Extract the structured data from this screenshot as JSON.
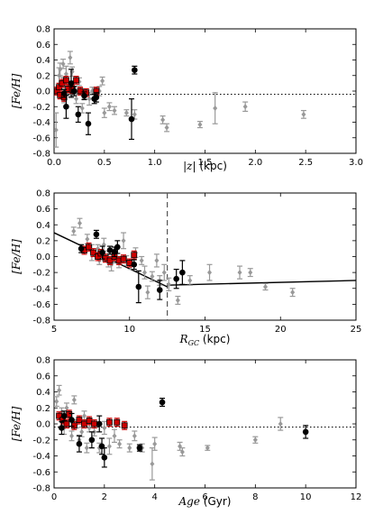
{
  "chart_data": [
    {
      "type": "scatter",
      "x_ticks": [
        0.0,
        0.5,
        1.0,
        1.5,
        2.0,
        2.5,
        3.0
      ],
      "y_ticks": [
        -0.8,
        -0.6,
        -0.4,
        -0.2,
        0.0,
        0.2,
        0.4,
        0.6,
        0.8
      ],
      "xlim": [
        0.0,
        3.0
      ],
      "ylim": [
        -0.8,
        0.8
      ],
      "ylabel": "[Fe/H]",
      "xlabel_sym": "|z|",
      "xlabel_unit": "(kpc)",
      "grid": false,
      "reference_line": {
        "style": "dotted",
        "y": -0.04
      },
      "series": [
        {
          "marker": "gray-diamond",
          "color": "#999999",
          "points": [
            [
              0.02,
              -0.5,
              0.22
            ],
            [
              0.05,
              0.2,
              0.1
            ],
            [
              0.06,
              0.28,
              0.08
            ],
            [
              0.08,
              0.1,
              0.08
            ],
            [
              0.09,
              0.35,
              0.06
            ],
            [
              0.1,
              -0.05,
              0.1
            ],
            [
              0.12,
              0.22,
              0.1
            ],
            [
              0.14,
              0.0,
              0.06
            ],
            [
              0.16,
              0.43,
              0.08
            ],
            [
              0.18,
              0.25,
              0.06
            ],
            [
              0.2,
              0.05,
              0.08
            ],
            [
              0.22,
              -0.1,
              0.06
            ],
            [
              0.25,
              0.12,
              0.05
            ],
            [
              0.28,
              -0.22,
              0.06
            ],
            [
              0.3,
              -0.04,
              0.06
            ],
            [
              0.35,
              -0.1,
              0.08
            ],
            [
              0.38,
              0.0,
              0.05
            ],
            [
              0.4,
              -0.05,
              0.06
            ],
            [
              0.45,
              0.0,
              0.06
            ],
            [
              0.48,
              0.13,
              0.05
            ],
            [
              0.5,
              -0.28,
              0.06
            ],
            [
              0.55,
              -0.2,
              0.05
            ],
            [
              0.6,
              -0.25,
              0.05
            ],
            [
              0.72,
              -0.28,
              0.04
            ],
            [
              0.8,
              -0.3,
              0.06
            ],
            [
              1.08,
              -0.37,
              0.05
            ],
            [
              1.12,
              -0.47,
              0.05
            ],
            [
              1.45,
              -0.43,
              0.04
            ],
            [
              1.6,
              -0.22,
              0.2
            ],
            [
              1.9,
              -0.2,
              0.06
            ],
            [
              2.48,
              -0.3,
              0.05
            ]
          ]
        },
        {
          "marker": "red-square",
          "color": "#cc0000",
          "points": [
            [
              0.03,
              0.0,
              0.05
            ],
            [
              0.05,
              0.05,
              0.05
            ],
            [
              0.06,
              -0.05,
              0.05
            ],
            [
              0.08,
              0.1,
              0.05
            ],
            [
              0.1,
              -0.08,
              0.05
            ],
            [
              0.12,
              0.14,
              0.05
            ],
            [
              0.14,
              0.03,
              0.05
            ],
            [
              0.18,
              0.02,
              0.05
            ],
            [
              0.22,
              0.14,
              0.05
            ],
            [
              0.26,
              0.0,
              0.05
            ],
            [
              0.32,
              -0.02,
              0.05
            ],
            [
              0.42,
              0.0,
              0.05
            ]
          ]
        },
        {
          "marker": "black-circle",
          "color": "#000000",
          "points": [
            [
              0.1,
              -0.03,
              0.05
            ],
            [
              0.12,
              -0.2,
              0.15
            ],
            [
              0.17,
              0.1,
              0.18
            ],
            [
              0.2,
              0.0,
              0.06
            ],
            [
              0.24,
              -0.3,
              0.1
            ],
            [
              0.3,
              -0.06,
              0.05
            ],
            [
              0.34,
              -0.42,
              0.14
            ],
            [
              0.4,
              -0.1,
              0.06
            ],
            [
              0.42,
              -0.08,
              0.06
            ],
            [
              0.77,
              -0.36,
              0.26
            ],
            [
              0.8,
              0.27,
              0.05
            ]
          ]
        }
      ]
    },
    {
      "type": "scatter",
      "x_ticks": [
        5,
        10,
        15,
        20,
        25
      ],
      "y_ticks": [
        -0.8,
        -0.6,
        -0.4,
        -0.2,
        0.0,
        0.2,
        0.4,
        0.6,
        0.8
      ],
      "xlim": [
        5,
        25
      ],
      "ylim": [
        -0.8,
        0.8
      ],
      "ylabel": "[Fe/H]",
      "xlabel_sym": "R_GC",
      "xlabel_unit": "(kpc)",
      "grid": false,
      "vertical_dashed": {
        "x": 12.5
      },
      "fit_lines": [
        [
          [
            5.0,
            0.3
          ],
          [
            12.5,
            -0.38
          ]
        ],
        [
          [
            12.5,
            -0.36
          ],
          [
            25.0,
            -0.3
          ]
        ]
      ],
      "series": [
        {
          "marker": "gray-diamond",
          "color": "#999999",
          "points": [
            [
              6.3,
              0.32,
              0.05
            ],
            [
              6.7,
              0.42,
              0.06
            ],
            [
              7.2,
              0.22,
              0.06
            ],
            [
              7.5,
              0.05,
              0.1
            ],
            [
              7.9,
              0.1,
              0.05
            ],
            [
              8.0,
              -0.05,
              0.05
            ],
            [
              8.3,
              0.15,
              0.08
            ],
            [
              8.6,
              -0.05,
              0.08
            ],
            [
              8.8,
              -0.1,
              0.08
            ],
            [
              9.0,
              -0.02,
              0.06
            ],
            [
              9.3,
              -0.08,
              0.06
            ],
            [
              9.6,
              0.2,
              0.1
            ],
            [
              9.8,
              -0.05,
              0.06
            ],
            [
              10.1,
              -0.1,
              0.06
            ],
            [
              10.4,
              0.05,
              0.06
            ],
            [
              10.8,
              -0.05,
              0.05
            ],
            [
              11.0,
              -0.2,
              0.08
            ],
            [
              11.2,
              -0.45,
              0.08
            ],
            [
              11.5,
              -0.25,
              0.06
            ],
            [
              11.8,
              -0.05,
              0.08
            ],
            [
              12.0,
              -0.3,
              0.06
            ],
            [
              12.3,
              -0.2,
              0.1
            ],
            [
              12.6,
              -0.35,
              0.08
            ],
            [
              13.2,
              -0.55,
              0.05
            ],
            [
              14.0,
              -0.3,
              0.06
            ],
            [
              15.3,
              -0.2,
              0.1
            ],
            [
              17.3,
              -0.2,
              0.08
            ],
            [
              18.0,
              -0.2,
              0.05
            ],
            [
              19.0,
              -0.38,
              0.04
            ],
            [
              20.8,
              -0.45,
              0.05
            ]
          ]
        },
        {
          "marker": "red-square",
          "color": "#cc0000",
          "points": [
            [
              7.0,
              0.08,
              0.05
            ],
            [
              7.3,
              0.12,
              0.05
            ],
            [
              7.6,
              0.05,
              0.05
            ],
            [
              7.9,
              0.0,
              0.05
            ],
            [
              8.1,
              0.04,
              0.05
            ],
            [
              8.4,
              -0.02,
              0.05
            ],
            [
              8.7,
              -0.05,
              0.05
            ],
            [
              9.0,
              0.0,
              0.05
            ],
            [
              9.3,
              -0.05,
              0.05
            ],
            [
              9.6,
              -0.03,
              0.05
            ],
            [
              10.0,
              -0.08,
              0.05
            ],
            [
              10.3,
              0.02,
              0.05
            ]
          ]
        },
        {
          "marker": "black-circle",
          "color": "#000000",
          "points": [
            [
              6.8,
              0.1,
              0.05
            ],
            [
              7.8,
              0.28,
              0.05
            ],
            [
              8.2,
              0.05,
              0.08
            ],
            [
              8.7,
              0.08,
              0.05
            ],
            [
              9.0,
              0.06,
              0.06
            ],
            [
              9.2,
              0.12,
              0.08
            ],
            [
              10.3,
              -0.1,
              0.06
            ],
            [
              10.6,
              -0.38,
              0.2
            ],
            [
              12.0,
              -0.42,
              0.12
            ],
            [
              13.1,
              -0.28,
              0.12
            ],
            [
              13.5,
              -0.2,
              0.15
            ]
          ]
        }
      ]
    },
    {
      "type": "scatter",
      "x_ticks": [
        0,
        2,
        4,
        6,
        8,
        10,
        12
      ],
      "y_ticks": [
        -0.8,
        -0.6,
        -0.4,
        -0.2,
        0.0,
        0.2,
        0.4,
        0.6,
        0.8
      ],
      "xlim": [
        0,
        12
      ],
      "ylim": [
        -0.8,
        0.8
      ],
      "ylabel": "[Fe/H]",
      "xlabel_sym": "Age",
      "xlabel_unit": "(Gyr)",
      "grid": false,
      "reference_line": {
        "style": "dotted",
        "y": -0.04
      },
      "series": [
        {
          "marker": "gray-diamond",
          "color": "#999999",
          "points": [
            [
              0.1,
              0.28,
              0.06
            ],
            [
              0.2,
              0.42,
              0.06
            ],
            [
              0.3,
              0.15,
              0.05
            ],
            [
              0.4,
              -0.05,
              0.08
            ],
            [
              0.5,
              0.2,
              0.06
            ],
            [
              0.6,
              0.1,
              0.06
            ],
            [
              0.7,
              -0.15,
              0.06
            ],
            [
              0.8,
              0.3,
              0.05
            ],
            [
              0.9,
              0.0,
              0.05
            ],
            [
              1.0,
              -0.2,
              0.06
            ],
            [
              1.1,
              -0.1,
              0.06
            ],
            [
              1.2,
              0.1,
              0.06
            ],
            [
              1.3,
              -0.3,
              0.06
            ],
            [
              1.4,
              -0.05,
              0.05
            ],
            [
              1.5,
              0.0,
              0.05
            ],
            [
              1.6,
              -0.1,
              0.05
            ],
            [
              1.8,
              -0.3,
              0.06
            ],
            [
              2.0,
              -0.05,
              0.08
            ],
            [
              2.2,
              -0.28,
              0.1
            ],
            [
              2.4,
              -0.15,
              0.08
            ],
            [
              2.6,
              -0.25,
              0.05
            ],
            [
              3.0,
              -0.3,
              0.05
            ],
            [
              3.2,
              -0.15,
              0.06
            ],
            [
              3.5,
              -0.3,
              0.05
            ],
            [
              3.9,
              -0.5,
              0.2
            ],
            [
              4.0,
              -0.25,
              0.08
            ],
            [
              5.0,
              -0.28,
              0.05
            ],
            [
              5.1,
              -0.35,
              0.05
            ],
            [
              6.1,
              -0.3,
              0.03
            ],
            [
              8.0,
              -0.2,
              0.04
            ],
            [
              9.0,
              0.0,
              0.08
            ]
          ]
        },
        {
          "marker": "red-square",
          "color": "#cc0000",
          "points": [
            [
              0.2,
              0.1,
              0.05
            ],
            [
              0.35,
              0.05,
              0.05
            ],
            [
              0.5,
              0.0,
              0.05
            ],
            [
              0.6,
              0.12,
              0.05
            ],
            [
              0.8,
              -0.02,
              0.05
            ],
            [
              1.0,
              0.05,
              0.05
            ],
            [
              1.2,
              0.0,
              0.05
            ],
            [
              1.4,
              0.04,
              0.05
            ],
            [
              1.6,
              0.0,
              0.05
            ],
            [
              2.2,
              0.02,
              0.05
            ],
            [
              2.5,
              0.02,
              0.05
            ],
            [
              2.8,
              -0.02,
              0.05
            ]
          ]
        },
        {
          "marker": "black-circle",
          "color": "#000000",
          "points": [
            [
              0.3,
              -0.05,
              0.08
            ],
            [
              0.4,
              0.1,
              0.06
            ],
            [
              0.7,
              0.05,
              0.08
            ],
            [
              1.0,
              -0.25,
              0.1
            ],
            [
              1.5,
              -0.2,
              0.1
            ],
            [
              1.8,
              0.0,
              0.1
            ],
            [
              1.9,
              -0.28,
              0.1
            ],
            [
              2.0,
              -0.42,
              0.12
            ],
            [
              3.4,
              -0.3,
              0.04
            ],
            [
              4.3,
              0.27,
              0.05
            ],
            [
              10.0,
              -0.1,
              0.08
            ]
          ]
        }
      ]
    }
  ]
}
